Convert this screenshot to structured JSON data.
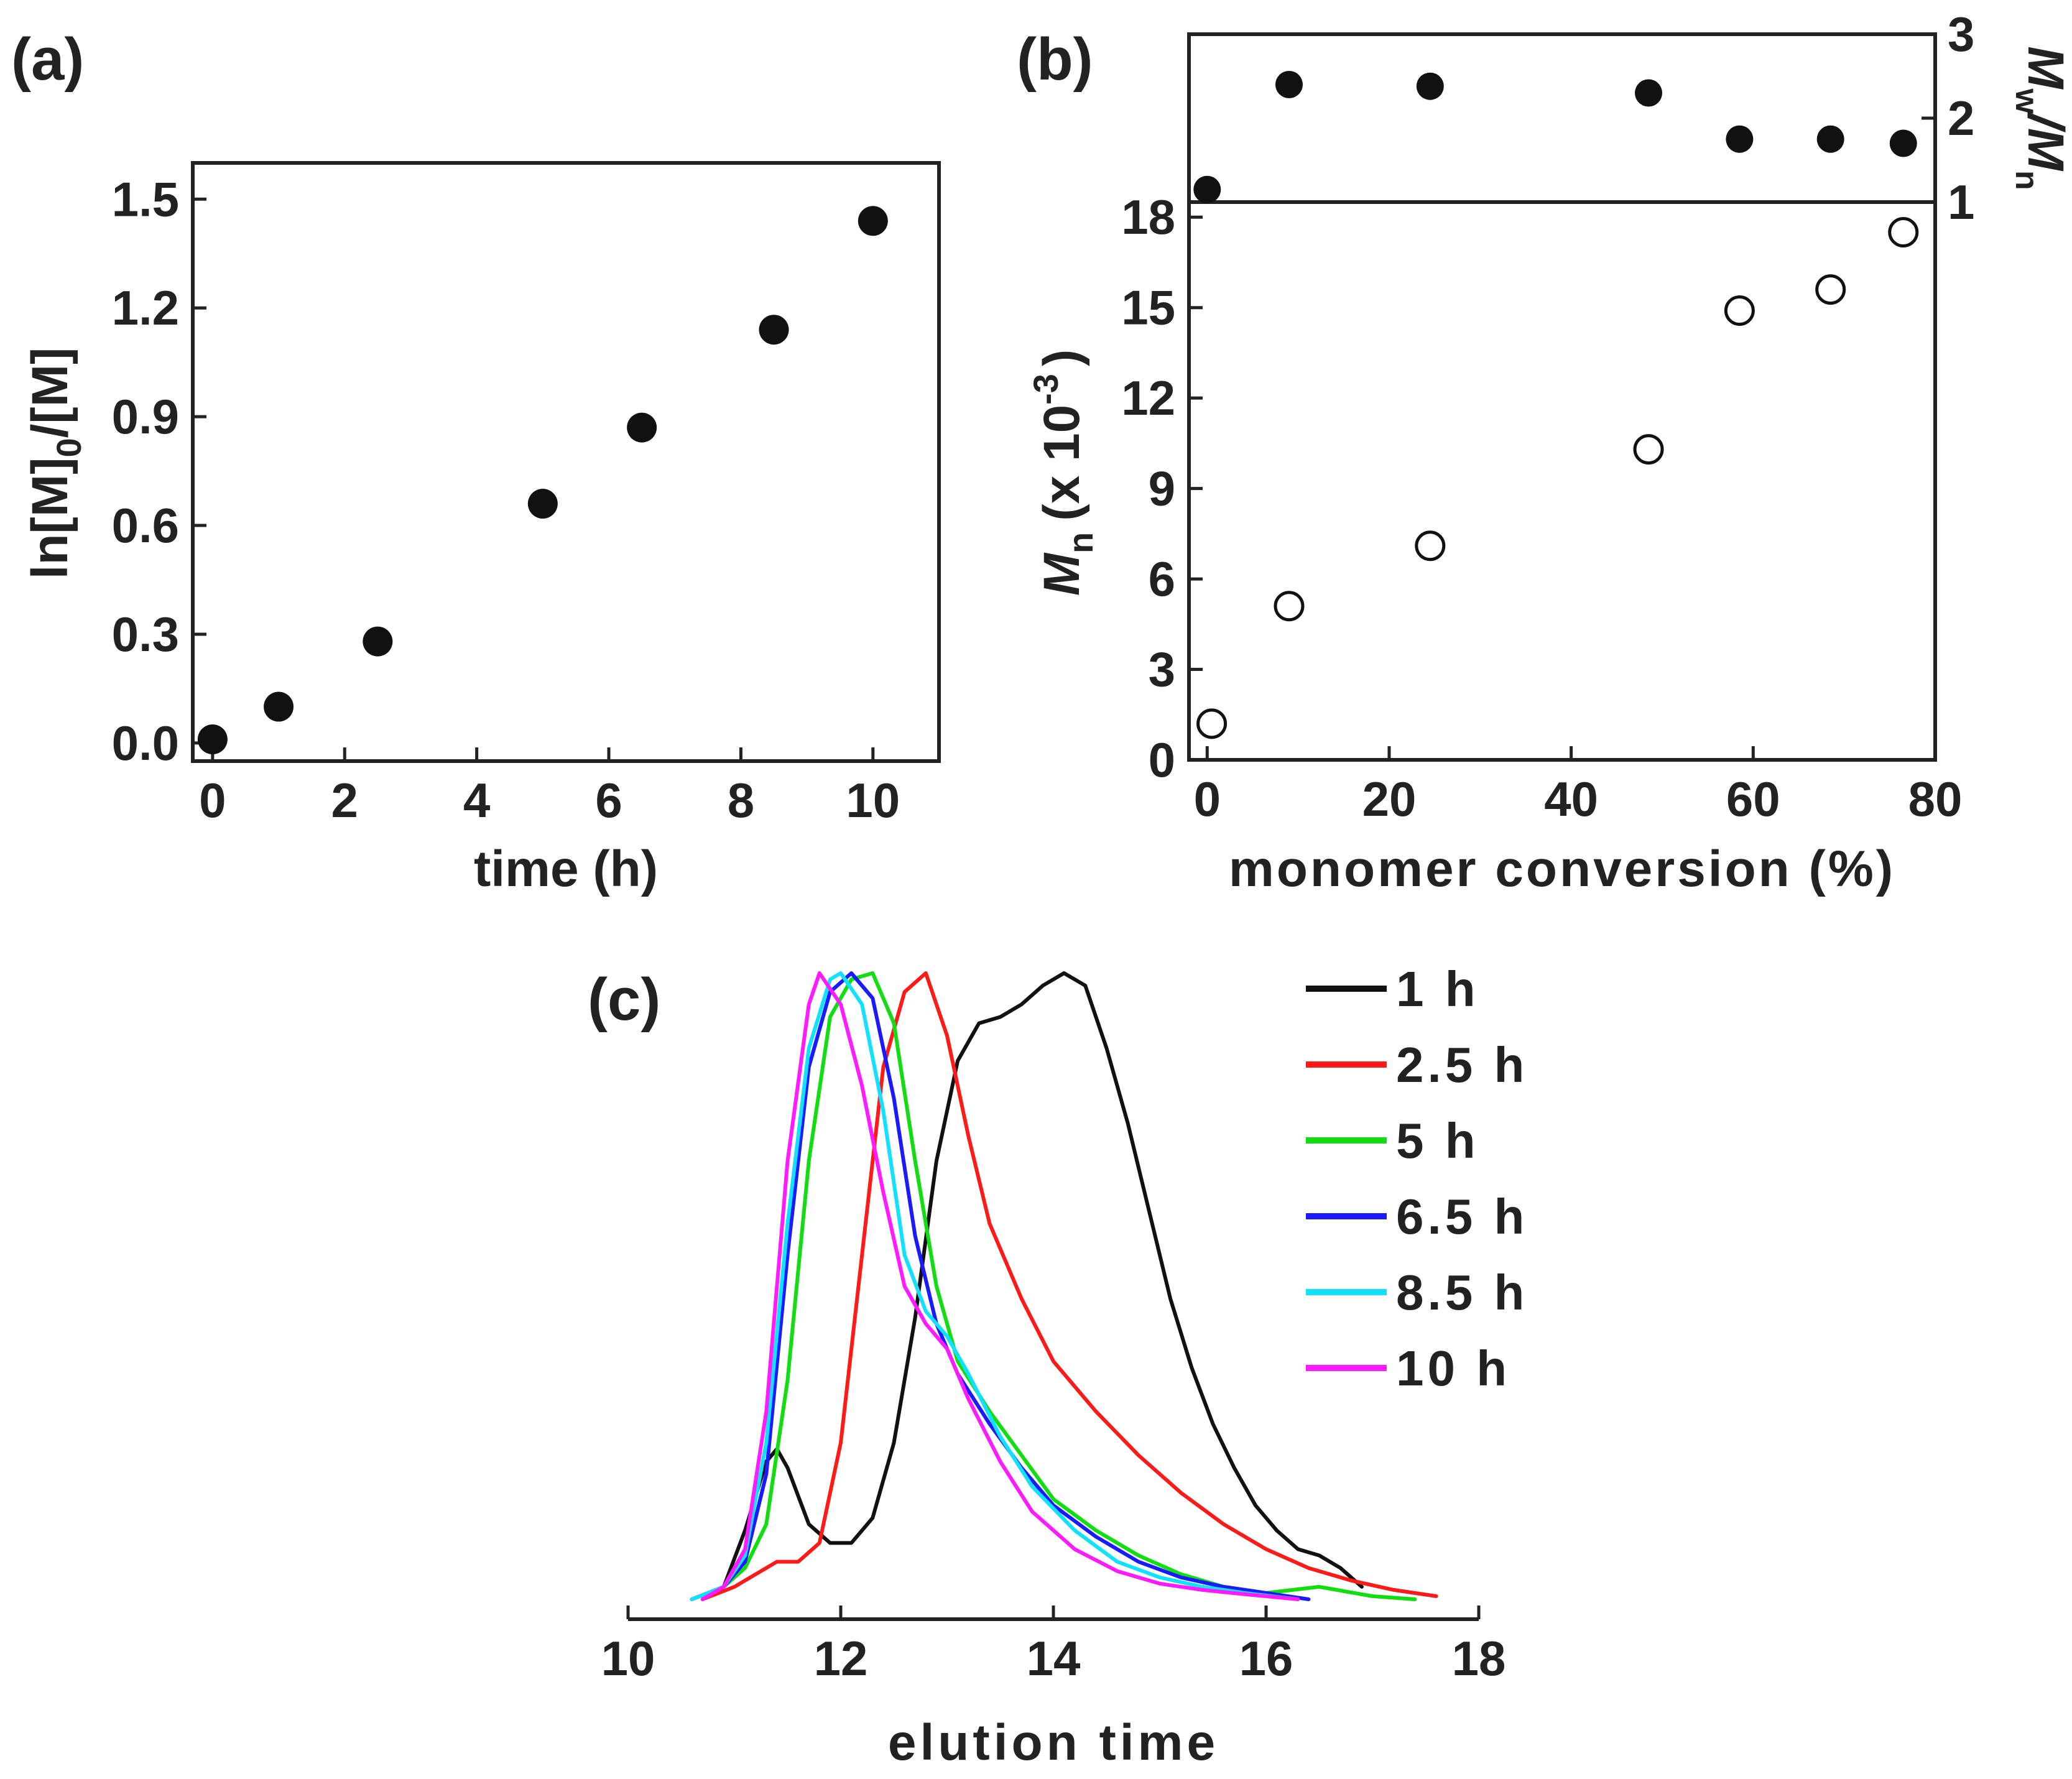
{
  "chart_data": [
    {
      "panel": "(a)",
      "type": "scatter",
      "xlabel": "time (h)",
      "ylabel_main": "ln[M]",
      "ylabel_sub": "0",
      "ylabel_rest": "/[M]",
      "xlim": [
        -0.3,
        11
      ],
      "ylim": [
        -0.05,
        1.6
      ],
      "xticks": [
        "0",
        "2",
        "4",
        "6",
        "8",
        "10"
      ],
      "yticks": [
        "0.0",
        "0.3",
        "0.6",
        "0.9",
        "1.2",
        "1.5"
      ],
      "points": [
        {
          "x": 0,
          "y": 0.01
        },
        {
          "x": 1,
          "y": 0.1
        },
        {
          "x": 2.5,
          "y": 0.28
        },
        {
          "x": 5,
          "y": 0.66
        },
        {
          "x": 6.5,
          "y": 0.87
        },
        {
          "x": 8.5,
          "y": 1.14
        },
        {
          "x": 10,
          "y": 1.44
        }
      ]
    },
    {
      "panel": "(b)",
      "type": "scatter",
      "xlabel": "monomer conversion (%)",
      "xlim": [
        -2,
        80
      ],
      "xticks": [
        "0",
        "20",
        "40",
        "60",
        "80"
      ],
      "top": {
        "ylabel": "M",
        "ylabel_sub1": "w",
        "ylabel_mid": "/M",
        "ylabel_sub2": "n",
        "ylim": [
          1,
          3
        ],
        "yticks": [
          "1",
          "2",
          "3"
        ],
        "points": [
          {
            "x": 0,
            "y": 1.15
          },
          {
            "x": 9,
            "y": 2.4
          },
          {
            "x": 24.5,
            "y": 2.38
          },
          {
            "x": 48.5,
            "y": 2.3
          },
          {
            "x": 58.5,
            "y": 1.75
          },
          {
            "x": 68.5,
            "y": 1.75
          },
          {
            "x": 76.5,
            "y": 1.7
          }
        ]
      },
      "bottom": {
        "ylabel": "M",
        "ylabel_sub": "n",
        "ylabel_rest": "(x 10",
        "ylabel_exp": "-3",
        "ylabel_end": ")",
        "ylim": [
          0,
          18.5
        ],
        "yticks": [
          "0",
          "3",
          "6",
          "9",
          "12",
          "15",
          "18"
        ],
        "points": [
          {
            "x": 0.5,
            "y": 1.2
          },
          {
            "x": 9,
            "y": 5.1
          },
          {
            "x": 24.5,
            "y": 7.1
          },
          {
            "x": 48.5,
            "y": 10.3
          },
          {
            "x": 58.5,
            "y": 14.9
          },
          {
            "x": 68.5,
            "y": 15.6
          },
          {
            "x": 76.5,
            "y": 17.5
          }
        ]
      }
    },
    {
      "panel": "(c)",
      "type": "line",
      "xlabel": "elution time",
      "xlim": [
        10,
        18
      ],
      "ylim": [
        0,
        1
      ],
      "xticks": [
        "10",
        "12",
        "14",
        "16",
        "18"
      ],
      "series": [
        {
          "name": "1 h",
          "color": "#111111",
          "x": [
            10.6,
            10.9,
            11.1,
            11.3,
            11.4,
            11.5,
            11.7,
            11.9,
            12.1,
            12.3,
            12.5,
            12.7,
            12.9,
            13.1,
            13.3,
            13.5,
            13.7,
            13.9,
            14.1,
            14.3,
            14.5,
            14.7,
            14.9,
            15.1,
            15.3,
            15.5,
            15.7,
            15.9,
            16.1,
            16.3,
            16.5,
            16.7,
            16.9
          ],
          "y": [
            0.0,
            0.02,
            0.11,
            0.22,
            0.24,
            0.21,
            0.12,
            0.09,
            0.09,
            0.13,
            0.25,
            0.45,
            0.7,
            0.86,
            0.92,
            0.93,
            0.95,
            0.98,
            1.0,
            0.98,
            0.88,
            0.76,
            0.62,
            0.48,
            0.37,
            0.28,
            0.21,
            0.15,
            0.11,
            0.08,
            0.07,
            0.05,
            0.02
          ]
        },
        {
          "name": "2.5 h",
          "color": "#ff1a1a",
          "x": [
            10.7,
            11.0,
            11.2,
            11.4,
            11.6,
            11.8,
            12.0,
            12.2,
            12.4,
            12.6,
            12.8,
            13.0,
            13.2,
            13.4,
            13.7,
            14.0,
            14.4,
            14.8,
            15.2,
            15.6,
            16.0,
            16.4,
            16.8,
            17.2,
            17.6
          ],
          "y": [
            0.0,
            0.02,
            0.04,
            0.06,
            0.06,
            0.09,
            0.25,
            0.55,
            0.85,
            0.97,
            1.0,
            0.9,
            0.74,
            0.6,
            0.48,
            0.38,
            0.3,
            0.23,
            0.17,
            0.12,
            0.08,
            0.05,
            0.03,
            0.015,
            0.005
          ]
        },
        {
          "name": "5 h",
          "color": "#11dd11",
          "x": [
            10.6,
            10.9,
            11.1,
            11.3,
            11.5,
            11.7,
            11.9,
            12.1,
            12.3,
            12.5,
            12.7,
            12.9,
            13.1,
            13.4,
            13.7,
            14.0,
            14.4,
            14.8,
            15.2,
            15.6,
            16.0,
            16.5,
            17.0,
            17.4
          ],
          "y": [
            0.0,
            0.02,
            0.05,
            0.12,
            0.35,
            0.7,
            0.93,
            0.99,
            1.0,
            0.92,
            0.7,
            0.5,
            0.38,
            0.3,
            0.23,
            0.16,
            0.11,
            0.07,
            0.04,
            0.02,
            0.01,
            0.02,
            0.005,
            0.0
          ]
        },
        {
          "name": "6.5 h",
          "color": "#1a1aff",
          "x": [
            10.6,
            10.9,
            11.1,
            11.3,
            11.5,
            11.7,
            11.9,
            12.1,
            12.3,
            12.5,
            12.7,
            12.9,
            13.1,
            13.4,
            13.7,
            14.0,
            14.4,
            14.8,
            15.2,
            15.6,
            16.0,
            16.4
          ],
          "y": [
            0.0,
            0.02,
            0.06,
            0.2,
            0.55,
            0.85,
            0.97,
            1.0,
            0.96,
            0.8,
            0.58,
            0.44,
            0.36,
            0.28,
            0.21,
            0.15,
            0.1,
            0.06,
            0.035,
            0.02,
            0.01,
            0.0
          ]
        },
        {
          "name": "8.5 h",
          "color": "#11e0ff",
          "x": [
            10.6,
            10.9,
            11.1,
            11.3,
            11.5,
            11.7,
            11.9,
            12.0,
            12.2,
            12.4,
            12.6,
            12.8,
            13.0,
            13.2,
            13.5,
            13.8,
            14.2,
            14.6,
            15.0,
            15.4,
            15.8,
            16.3
          ],
          "y": [
            0.0,
            0.02,
            0.07,
            0.25,
            0.6,
            0.88,
            0.99,
            1.0,
            0.95,
            0.78,
            0.55,
            0.46,
            0.42,
            0.36,
            0.26,
            0.18,
            0.11,
            0.06,
            0.035,
            0.02,
            0.01,
            0.0
          ]
        },
        {
          "name": "10 h",
          "color": "#ff1aff",
          "x": [
            10.7,
            10.9,
            11.1,
            11.3,
            11.5,
            11.7,
            11.8,
            12.0,
            12.2,
            12.4,
            12.6,
            12.8,
            13.0,
            13.2,
            13.5,
            13.8,
            14.2,
            14.6,
            15.0,
            15.4,
            15.8,
            16.3
          ],
          "y": [
            0.0,
            0.02,
            0.08,
            0.3,
            0.7,
            0.95,
            1.0,
            0.95,
            0.82,
            0.65,
            0.5,
            0.44,
            0.4,
            0.32,
            0.22,
            0.14,
            0.08,
            0.045,
            0.025,
            0.015,
            0.008,
            0.0
          ]
        }
      ]
    }
  ]
}
